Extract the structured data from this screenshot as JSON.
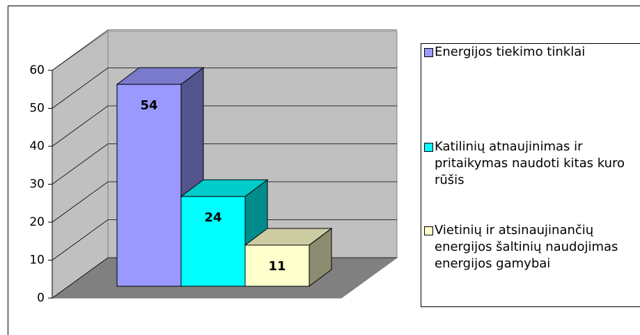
{
  "chart_data": {
    "type": "bar3d",
    "categories": [
      null
    ],
    "series": [
      {
        "name": "Energijos tiekimo tinklai",
        "color": "#9999ff",
        "values": [
          54
        ]
      },
      {
        "name": "Katilinių atnaujinimas ir pritaikymas naudoti kitas kuro rūšis",
        "color": "#00ffff",
        "values": [
          24
        ]
      },
      {
        "name": "Vietinių ir atsinaujinančių energijos šaltinių naudojimas energijos gamybai",
        "color": "#ffffcc",
        "values": [
          11
        ]
      }
    ],
    "ylim": [
      0,
      60
    ],
    "yticks": [
      0,
      10,
      20,
      30,
      40,
      50,
      60
    ],
    "grid": true,
    "legend": "right"
  }
}
